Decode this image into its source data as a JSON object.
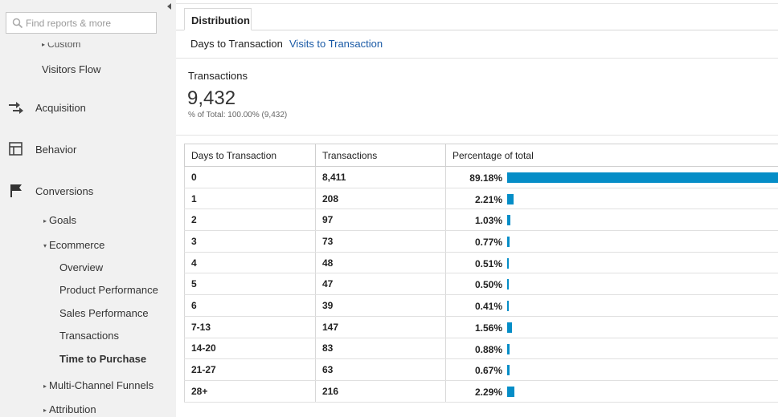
{
  "sidebar": {
    "search_placeholder": "Find reports & more",
    "custom_label": "Custom",
    "visitors_flow": "Visitors Flow",
    "acquisition": "Acquisition",
    "behavior": "Behavior",
    "conversions": "Conversions",
    "goals": "Goals",
    "ecommerce": "Ecommerce",
    "overview": "Overview",
    "product_performance": "Product Performance",
    "sales_performance": "Sales Performance",
    "transactions": "Transactions",
    "time_to_purchase": "Time to Purchase",
    "multi_channel_funnels": "Multi-Channel Funnels",
    "attribution": "Attribution"
  },
  "main": {
    "tab_label": "Distribution",
    "subtab_active": "Days to Transaction",
    "subtab_link": "Visits to Transaction",
    "metric": {
      "label": "Transactions",
      "value": "9,432",
      "sub": "% of Total: 100.00% (9,432)"
    },
    "table": {
      "headers": [
        "Days to Transaction",
        "Transactions",
        "Percentage of total"
      ],
      "rows": [
        {
          "days": "0",
          "transactions": "8,411",
          "pct": "89.18%",
          "fraction": 0.8918
        },
        {
          "days": "1",
          "transactions": "208",
          "pct": "2.21%",
          "fraction": 0.0221
        },
        {
          "days": "2",
          "transactions": "97",
          "pct": "1.03%",
          "fraction": 0.0103
        },
        {
          "days": "3",
          "transactions": "73",
          "pct": "0.77%",
          "fraction": 0.0077
        },
        {
          "days": "4",
          "transactions": "48",
          "pct": "0.51%",
          "fraction": 0.0051
        },
        {
          "days": "5",
          "transactions": "47",
          "pct": "0.50%",
          "fraction": 0.005
        },
        {
          "days": "6",
          "transactions": "39",
          "pct": "0.41%",
          "fraction": 0.0041
        },
        {
          "days": "7-13",
          "transactions": "147",
          "pct": "1.56%",
          "fraction": 0.0156
        },
        {
          "days": "14-20",
          "transactions": "83",
          "pct": "0.88%",
          "fraction": 0.0088
        },
        {
          "days": "21-27",
          "transactions": "63",
          "pct": "0.67%",
          "fraction": 0.0067
        },
        {
          "days": "28+",
          "transactions": "216",
          "pct": "2.29%",
          "fraction": 0.0229
        }
      ]
    }
  },
  "colors": {
    "bar": "#058dc7",
    "link": "#1a5aa6",
    "sidebar_bg": "#f1f1f1"
  }
}
